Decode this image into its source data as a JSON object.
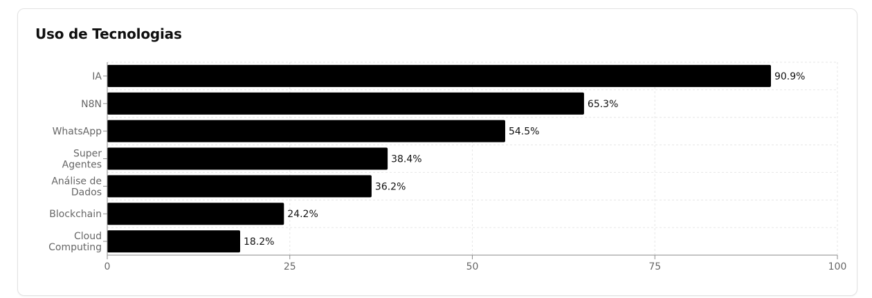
{
  "card": {
    "title": "Uso de Tecnologias"
  },
  "chart_data": {
    "type": "bar",
    "orientation": "horizontal",
    "title": "Uso de Tecnologias",
    "xlabel": "",
    "ylabel": "",
    "categories": [
      [
        "IA"
      ],
      [
        "N8N"
      ],
      [
        "WhatsApp"
      ],
      [
        "Super",
        "Agentes"
      ],
      [
        "Análise de",
        "Dados"
      ],
      [
        "Blockchain"
      ],
      [
        "Cloud",
        "Computing"
      ]
    ],
    "values": [
      90.9,
      65.3,
      54.5,
      38.4,
      36.2,
      24.2,
      18.2
    ],
    "value_labels": [
      "90.9%",
      "65.3%",
      "54.5%",
      "38.4%",
      "36.2%",
      "24.2%",
      "18.2%"
    ],
    "xlim": [
      0,
      100
    ],
    "xticks": [
      0,
      25,
      50,
      75,
      100
    ],
    "grid": true,
    "grid_style": "dashed",
    "bar_color": "#000000",
    "grid_color": "#e6e6e6",
    "axis_color": "#8a8a8a",
    "tick_label_color": "#666666",
    "value_label_color": "#111111"
  }
}
